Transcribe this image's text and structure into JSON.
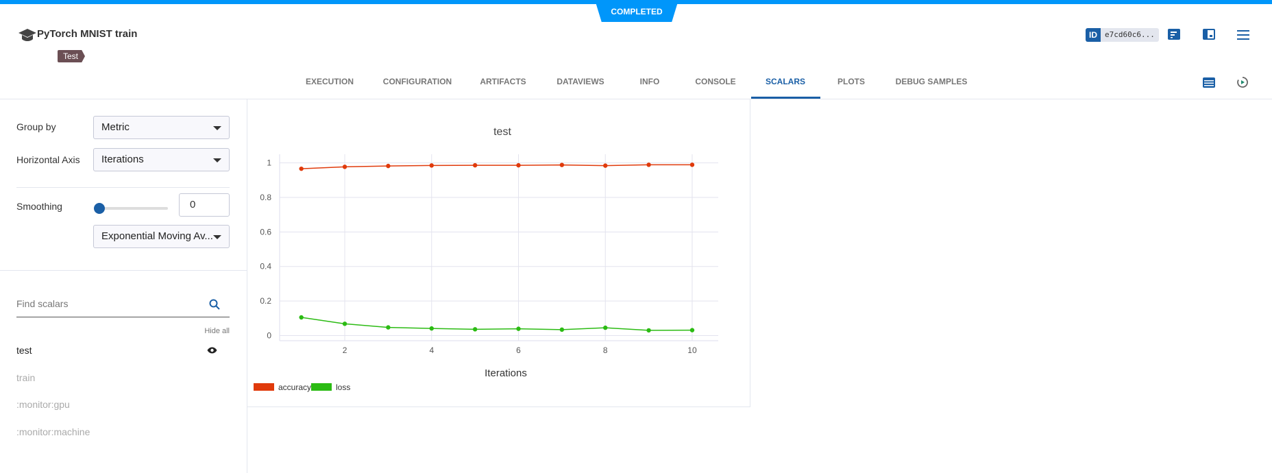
{
  "status": "COMPLETED",
  "task": {
    "title": "PyTorch MNIST train",
    "tag": "Test",
    "id_label": "ID",
    "id_value": "e7cd60c6..."
  },
  "tabs": [
    {
      "label": "EXECUTION"
    },
    {
      "label": "CONFIGURATION"
    },
    {
      "label": "ARTIFACTS"
    },
    {
      "label": "DATAVIEWS"
    },
    {
      "label": "INFO"
    },
    {
      "label": "CONSOLE"
    },
    {
      "label": "SCALARS",
      "active": true
    },
    {
      "label": "PLOTS"
    },
    {
      "label": "DEBUG SAMPLES"
    }
  ],
  "sidebar": {
    "group_by_label": "Group by",
    "group_by_value": "Metric",
    "haxis_label": "Horizontal Axis",
    "haxis_value": "Iterations",
    "smoothing_label": "Smoothing",
    "smoothing_value": "0",
    "smoothing_slider": 0,
    "smoothing_method": "Exponential Moving Av...",
    "search_placeholder": "Find scalars",
    "hide_all": "Hide all",
    "scalars": [
      {
        "label": "test",
        "visible": true
      },
      {
        "label": "train"
      },
      {
        "label": ":monitor:gpu"
      },
      {
        "label": ":monitor:machine"
      }
    ]
  },
  "chart_data": {
    "type": "line",
    "title": "test",
    "xlabel": "Iterations",
    "ylabel": "",
    "x": [
      1,
      2,
      3,
      4,
      5,
      6,
      7,
      8,
      9,
      10
    ],
    "xlim": [
      0.5,
      10.6
    ],
    "ylim": [
      -0.03,
      1.05
    ],
    "xticks": [
      "2",
      "4",
      "6",
      "8",
      "10"
    ],
    "yticks": [
      "0",
      "0.2",
      "0.4",
      "0.6",
      "0.8",
      "1"
    ],
    "grid": true,
    "legend": "bottom-left",
    "series": [
      {
        "name": "accuracy",
        "color": "#e03a0b",
        "values": [
          0.966,
          0.977,
          0.982,
          0.985,
          0.986,
          0.986,
          0.988,
          0.984,
          0.989,
          0.989
        ]
      },
      {
        "name": "loss",
        "color": "#2bbb13",
        "values": [
          0.105,
          0.068,
          0.047,
          0.041,
          0.036,
          0.039,
          0.034,
          0.045,
          0.03,
          0.031
        ]
      }
    ]
  }
}
